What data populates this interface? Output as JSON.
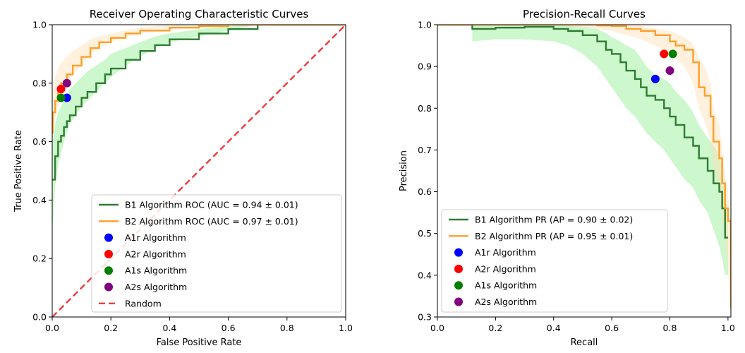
{
  "chart_data": [
    {
      "type": "line",
      "title": "Receiver Operating Characteristic Curves",
      "xlabel": "False Positive Rate",
      "ylabel": "True Positive Rate",
      "xlim": [
        0,
        1
      ],
      "ylim": [
        0,
        1
      ],
      "xticks": [
        "0.0",
        "0.2",
        "0.4",
        "0.6",
        "0.8",
        "1.0"
      ],
      "yticks": [
        "0.0",
        "0.2",
        "0.4",
        "0.6",
        "0.8",
        "1.0"
      ],
      "grid": false,
      "legend_position": "bottom-right",
      "series": [
        {
          "name": "B1 Algorithm ROC (AUC = 0.94 ± 0.01)",
          "color": "#2e7d32",
          "band_color": "#90ee90",
          "x": [
            0,
            0.005,
            0.01,
            0.02,
            0.03,
            0.04,
            0.05,
            0.06,
            0.08,
            0.1,
            0.12,
            0.15,
            0.18,
            0.2,
            0.25,
            0.3,
            0.35,
            0.4,
            0.5,
            0.6,
            0.7,
            0.8,
            0.9,
            1.0
          ],
          "y": [
            0.47,
            0.47,
            0.55,
            0.6,
            0.62,
            0.65,
            0.67,
            0.69,
            0.72,
            0.75,
            0.77,
            0.8,
            0.83,
            0.85,
            0.88,
            0.91,
            0.93,
            0.95,
            0.97,
            0.985,
            1.0,
            1.0,
            1.0,
            1.0
          ],
          "lower": [
            0.3,
            0.35,
            0.45,
            0.52,
            0.56,
            0.6,
            0.63,
            0.66,
            0.69,
            0.72,
            0.74,
            0.77,
            0.8,
            0.82,
            0.86,
            0.89,
            0.92,
            0.94,
            0.96,
            0.98,
            1.0,
            1.0,
            1.0,
            1.0
          ],
          "upper": [
            0.6,
            0.62,
            0.66,
            0.7,
            0.72,
            0.74,
            0.76,
            0.78,
            0.8,
            0.82,
            0.84,
            0.86,
            0.88,
            0.9,
            0.92,
            0.94,
            0.96,
            0.97,
            0.985,
            0.995,
            1.0,
            1.0,
            1.0,
            1.0
          ]
        },
        {
          "name": "B2 Algorithm ROC (AUC = 0.97 ± 0.01)",
          "color": "#ff9f2a",
          "band_color": "#ffe0b3",
          "x": [
            0,
            0.002,
            0.01,
            0.02,
            0.03,
            0.05,
            0.07,
            0.1,
            0.13,
            0.16,
            0.2,
            0.25,
            0.3,
            0.4,
            0.5,
            0.6,
            0.7,
            0.8,
            0.9,
            1.0
          ],
          "y": [
            0.63,
            0.7,
            0.74,
            0.77,
            0.8,
            0.83,
            0.86,
            0.89,
            0.92,
            0.94,
            0.955,
            0.97,
            0.98,
            0.99,
            0.995,
            1.0,
            1.0,
            1.0,
            1.0,
            1.0
          ],
          "lower": [
            0.55,
            0.62,
            0.68,
            0.72,
            0.75,
            0.79,
            0.83,
            0.86,
            0.9,
            0.92,
            0.94,
            0.96,
            0.97,
            0.985,
            0.99,
            1.0,
            1.0,
            1.0,
            1.0,
            1.0
          ],
          "upper": [
            0.72,
            0.78,
            0.82,
            0.85,
            0.87,
            0.89,
            0.91,
            0.93,
            0.95,
            0.96,
            0.97,
            0.98,
            0.99,
            1.0,
            1.0,
            1.0,
            1.0,
            1.0,
            1.0,
            1.0
          ]
        }
      ],
      "points": [
        {
          "name": "A1r Algorithm",
          "color": "#0000ff",
          "x": 0.05,
          "y": 0.75
        },
        {
          "name": "A2r Algorithm",
          "color": "#ff0000",
          "x": 0.03,
          "y": 0.78
        },
        {
          "name": "A1s Algorithm",
          "color": "#008000",
          "x": 0.03,
          "y": 0.75
        },
        {
          "name": "A2s Algorithm",
          "color": "#800080",
          "x": 0.05,
          "y": 0.8
        }
      ],
      "reference_line": {
        "name": "Random",
        "color": "#f03c3c",
        "style": "dashed",
        "x": [
          0,
          1
        ],
        "y": [
          0,
          1
        ]
      }
    },
    {
      "type": "line",
      "title": "Precision-Recall Curves",
      "xlabel": "Recall",
      "ylabel": "Precision",
      "xlim": [
        0,
        1.01
      ],
      "ylim": [
        0.3,
        1.0
      ],
      "xticks": [
        "0.0",
        "0.2",
        "0.4",
        "0.6",
        "0.8",
        "1.0"
      ],
      "yticks": [
        "0.3",
        "0.4",
        "0.5",
        "0.6",
        "0.7",
        "0.8",
        "0.9",
        "1.0"
      ],
      "grid": false,
      "legend_position": "bottom-left",
      "series": [
        {
          "name": "B1 Algorithm PR (AP = 0.90 ± 0.02)",
          "color": "#2e7d32",
          "band_color": "#90ee90",
          "x": [
            0,
            0.12,
            0.12,
            0.2,
            0.3,
            0.4,
            0.45,
            0.5,
            0.55,
            0.58,
            0.6,
            0.63,
            0.65,
            0.68,
            0.7,
            0.72,
            0.75,
            0.78,
            0.8,
            0.82,
            0.85,
            0.88,
            0.9,
            0.93,
            0.95,
            0.97,
            0.98,
            0.99,
            1.0
          ],
          "y": [
            1.0,
            1.0,
            0.99,
            0.993,
            0.995,
            0.99,
            0.985,
            0.975,
            0.96,
            0.94,
            0.93,
            0.91,
            0.89,
            0.87,
            0.85,
            0.83,
            0.82,
            0.8,
            0.78,
            0.76,
            0.73,
            0.71,
            0.68,
            0.65,
            0.62,
            0.6,
            0.56,
            0.49,
            0.49
          ],
          "lower": [
            1.0,
            1.0,
            0.96,
            0.965,
            0.965,
            0.96,
            0.95,
            0.93,
            0.9,
            0.87,
            0.85,
            0.82,
            0.8,
            0.78,
            0.76,
            0.74,
            0.72,
            0.7,
            0.68,
            0.66,
            0.63,
            0.61,
            0.58,
            0.55,
            0.51,
            0.47,
            0.44,
            0.4,
            0.4
          ],
          "upper": [
            1.0,
            1.0,
            1.0,
            1.0,
            1.0,
            1.0,
            0.998,
            0.995,
            0.99,
            0.98,
            0.97,
            0.96,
            0.95,
            0.94,
            0.92,
            0.9,
            0.88,
            0.87,
            0.86,
            0.84,
            0.82,
            0.79,
            0.76,
            0.73,
            0.71,
            0.69,
            0.66,
            0.57,
            0.57
          ]
        },
        {
          "name": "B2 Algorithm PR (AP = 0.95 ± 0.01)",
          "color": "#ff9f2a",
          "band_color": "#ffe0b3",
          "x": [
            0,
            0.4,
            0.55,
            0.6,
            0.65,
            0.7,
            0.75,
            0.8,
            0.82,
            0.85,
            0.88,
            0.9,
            0.92,
            0.94,
            0.95,
            0.97,
            0.98,
            0.99,
            1.0,
            1.01
          ],
          "y": [
            1.0,
            1.0,
            0.998,
            0.997,
            0.99,
            0.985,
            0.975,
            0.96,
            0.95,
            0.94,
            0.91,
            0.85,
            0.83,
            0.78,
            0.72,
            0.68,
            0.62,
            0.56,
            0.53,
            0.32
          ],
          "lower": [
            1.0,
            1.0,
            0.99,
            0.985,
            0.975,
            0.965,
            0.95,
            0.93,
            0.92,
            0.9,
            0.86,
            0.8,
            0.77,
            0.72,
            0.66,
            0.6,
            0.54,
            0.48,
            0.42,
            0.32
          ],
          "upper": [
            1.0,
            1.0,
            1.0,
            1.0,
            1.0,
            0.998,
            0.99,
            0.985,
            0.98,
            0.97,
            0.955,
            0.92,
            0.9,
            0.86,
            0.8,
            0.76,
            0.7,
            0.64,
            0.6,
            0.5
          ]
        }
      ],
      "points": [
        {
          "name": "A1r Algorithm",
          "color": "#0000ff",
          "x": 0.75,
          "y": 0.87
        },
        {
          "name": "A2r Algorithm",
          "color": "#ff0000",
          "x": 0.78,
          "y": 0.93
        },
        {
          "name": "A1s Algorithm",
          "color": "#008000",
          "x": 0.81,
          "y": 0.93
        },
        {
          "name": "A2s Algorithm",
          "color": "#800080",
          "x": 0.8,
          "y": 0.89
        }
      ]
    }
  ]
}
